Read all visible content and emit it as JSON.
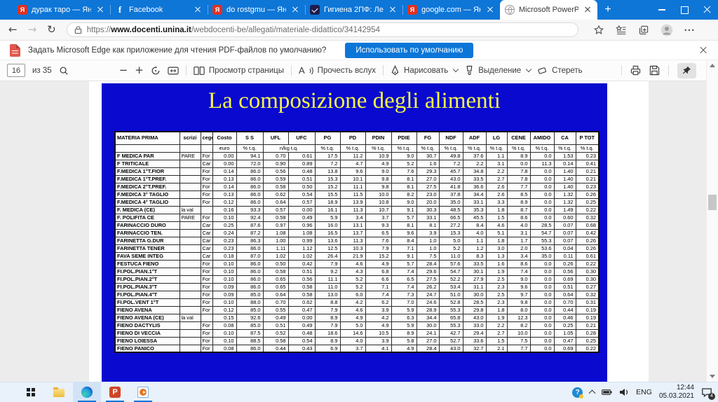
{
  "browser": {
    "tab_bar": {
      "tabs": [
        {
          "title": "дурак таро — Яндекс",
          "icon": "yandex",
          "active": false
        },
        {
          "title": "Facebook",
          "icon": "facebook",
          "active": false
        },
        {
          "title": "do rostgmu — Яндекс",
          "icon": "yandex",
          "active": false
        },
        {
          "title": "Гигиена 2ПФ: Лекция",
          "icon": "webinar",
          "active": false
        },
        {
          "title": "google.com — Яндекс",
          "icon": "yandex",
          "active": false
        },
        {
          "title": "Microsoft PowerPoint -",
          "icon": "globe",
          "active": true
        }
      ],
      "new_tab": "+"
    },
    "nav": {
      "url_scheme": "https://",
      "url_host": "www.docenti.unina.it",
      "url_path": "/webdocenti-be/allegati/materiale-didattico/34142954"
    },
    "notification": {
      "message": "Задать Microsoft Edge как приложение для чтения PDF-файлов по умолчанию?",
      "button": "Использовать по умолчанию"
    },
    "pdf_toolbar": {
      "page_number": "16",
      "page_count_label": "из 35",
      "page_view_label": "Просмотр страницы",
      "read_aloud_label": "Прочесть вслух",
      "draw_label": "Нарисовать",
      "highlight_label": "Выделение",
      "erase_label": "Стереть"
    }
  },
  "slide": {
    "title": "La composizione degli alimenti",
    "table": {
      "columns": [
        "MATERIA PRIMA",
        "scrizi",
        "cegc",
        "Costo",
        "S S",
        "UFL",
        "UFC",
        "PG",
        "PD",
        "PDIN",
        "PDIE",
        "FG",
        "NDF",
        "ADF",
        "LG",
        "CENE",
        "AMIDO",
        "CA",
        "P TOT"
      ],
      "units": [
        {
          "label": "",
          "span": 1
        },
        {
          "label": "",
          "span": 1
        },
        {
          "label": "",
          "span": 1
        },
        {
          "label": "euro",
          "span": 1
        },
        {
          "label": "% t.q.",
          "span": 1
        },
        {
          "label": "n/kg t.q.",
          "span": 2
        },
        {
          "label": "% t.q.",
          "span": 1
        },
        {
          "label": "% t.q.",
          "span": 1
        },
        {
          "label": "% t.q.",
          "span": 1
        },
        {
          "label": "% t.q.",
          "span": 1
        },
        {
          "label": "% t.q.",
          "span": 1
        },
        {
          "label": "% t.q.",
          "span": 1
        },
        {
          "label": "% t.q.",
          "span": 1
        },
        {
          "label": "% t.q.",
          "span": 1
        },
        {
          "label": "% t.q.",
          "span": 1
        },
        {
          "label": "% t.q.",
          "span": 1
        },
        {
          "label": "% t.q.",
          "span": 1
        },
        {
          "label": "% t.q.",
          "span": 1
        }
      ],
      "rows": [
        [
          "F MEDICA PAR",
          "PARE",
          "For",
          "0.00",
          "94.1",
          "0.70",
          "0.61",
          "17.5",
          "11.2",
          "10.9",
          "9.0",
          "30.7",
          "49.8",
          "37.6",
          "1.1",
          "8.9",
          "0.0",
          "1.53",
          "0.23"
        ],
        [
          "F TRITICALE",
          "",
          "Car",
          "0.00",
          "72.0",
          "0.90",
          "0.89",
          "7.2",
          "4.7",
          "4.9",
          "5.2",
          "1.6",
          "7.2",
          "2.2",
          "3.1",
          "0.0",
          "11.3",
          "0.14",
          "0.41"
        ],
        [
          "F.MEDICA 1°T.FIOR",
          "",
          "For",
          "0.14",
          "86.0",
          "0.56",
          "0.48",
          "13.8",
          "9.6",
          "9.0",
          "7.6",
          "29.3",
          "45.7",
          "34.8",
          "2.2",
          "7.8",
          "0.0",
          "1.40",
          "0.21"
        ],
        [
          "F.MEDICA 1°T.PREF.",
          "",
          "For",
          "0.13",
          "86.0",
          "0.59",
          "0.51",
          "15.3",
          "10.1",
          "9.8",
          "8.1",
          "27.0",
          "43.0",
          "33.5",
          "2.7",
          "7.8",
          "0.0",
          "1.40",
          "0.21"
        ],
        [
          "F.MEDICA 2°T.PREF.",
          "",
          "For",
          "0.14",
          "86.0",
          "0.58",
          "0.50",
          "15.2",
          "11.1",
          "9.8",
          "8.1",
          "27.5",
          "41.8",
          "36.6",
          "2.6",
          "7.7",
          "0.0",
          "1.40",
          "0.23"
        ],
        [
          "F.MEDICA 3° TAGLIO",
          "",
          "For",
          "0.13",
          "86.0",
          "0.62",
          "0.54",
          "15.5",
          "11.5",
          "10.0",
          "8.2",
          "23.0",
          "37.8",
          "34.4",
          "2.6",
          "8.5",
          "0.0",
          "1.32",
          "0.26"
        ],
        [
          "F.MEDICA 4° TAGLIO",
          "",
          "For",
          "0.12",
          "86.0",
          "0.64",
          "0.57",
          "18.9",
          "13.9",
          "10.8",
          "9.0",
          "20.0",
          "35.0",
          "33.1",
          "3.3",
          "8.9",
          "0.0",
          "1.32",
          "0.25"
        ],
        [
          "F. MEDICA (CE)",
          "la val",
          "",
          "0.16",
          "93.3",
          "0.57",
          "0.00",
          "16.1",
          "11.3",
          "10.7",
          "9.1",
          "30.3",
          "48.5",
          "35.3",
          "1.8",
          "8.7",
          "0.0",
          "1.49",
          "0.22"
        ],
        [
          "F. POLIFITA CE",
          "PARE",
          "For",
          "0.10",
          "92.4",
          "0.58",
          "0.49",
          "5.9",
          "3.4",
          "3.7",
          "5.7",
          "33.1",
          "66.5",
          "45.5",
          "1.5",
          "8.6",
          "0.0",
          "0.60",
          "0.32"
        ],
        [
          "FARINACCIO DURO",
          "",
          "Car",
          "0.25",
          "87.6",
          "0.97",
          "0.96",
          "16.0",
          "13.1",
          "9.3",
          "8.1",
          "8.1",
          "27.2",
          "8.4",
          "4.6",
          "4.0",
          "28.5",
          "0.07",
          "0.68"
        ],
        [
          "FARINACCIO TEN.",
          "",
          "Car",
          "0.24",
          "87.2",
          "1.08",
          "1.08",
          "16.5",
          "13.7",
          "6.5",
          "9.6",
          "3.9",
          "15.3",
          "4.0",
          "5.1",
          "3.1",
          "54.7",
          "0.07",
          "0.42"
        ],
        [
          "FARINETTA G.DUR",
          "",
          "Car",
          "0.23",
          "86.3",
          "1.00",
          "0.99",
          "13.6",
          "11.3",
          "7.6",
          "8.4",
          "1.0",
          "5.0",
          "1.1",
          "1.8",
          "1.7",
          "55.3",
          "0.07",
          "0.26"
        ],
        [
          "FARINETTA TENER",
          "",
          "Car",
          "0.23",
          "86.0",
          "1.11",
          "1.12",
          "12.5",
          "10.3",
          "7.9",
          "7.1",
          "1.0",
          "5.2",
          "1.2",
          "3.0",
          "2.0",
          "53.6",
          "0.04",
          "0.26"
        ],
        [
          "FAVA SEME INTEG",
          "",
          "Car",
          "0.18",
          "87.0",
          "1.02",
          "1.02",
          "26.4",
          "21.9",
          "15.2",
          "9.1",
          "7.5",
          "11.0",
          "8.3",
          "1.3",
          "3.4",
          "35.0",
          "0.11",
          "0.61"
        ],
        [
          "FESTUCA FIENO",
          "",
          "For",
          "0.10",
          "86.0",
          "0.50",
          "0.42",
          "7.9",
          "4.6",
          "4.9",
          "5.7",
          "28.4",
          "57.6",
          "33.5",
          "1.6",
          "8.6",
          "0.0",
          "0.26",
          "0.22"
        ],
        [
          "FI.POL.PIAN.1°T",
          "",
          "For",
          "0.10",
          "86.0",
          "0.58",
          "0.51",
          "9.2",
          "4.3",
          "6.8",
          "7.4",
          "29.6",
          "54.7",
          "30.1",
          "1.9",
          "7.4",
          "0.0",
          "0.56",
          "0.30"
        ],
        [
          "FI.POL.PIAN.2°T",
          "",
          "For",
          "0.10",
          "86.0",
          "0.65",
          "0.56",
          "11.1",
          "5.2",
          "6.6",
          "6.5",
          "27.5",
          "52.2",
          "27.9",
          "2.5",
          "9.0",
          "0.0",
          "0.69",
          "0.30"
        ],
        [
          "FI.POL.PIAN.3°T",
          "",
          "For",
          "0.09",
          "86.0",
          "0.65",
          "0.58",
          "11.0",
          "5.2",
          "7.1",
          "7.4",
          "26.2",
          "53.4",
          "31.1",
          "2.3",
          "9.6",
          "0.0",
          "0.51",
          "0.27"
        ],
        [
          "FI.POL.PIAN.4°T",
          "",
          "For",
          "0.09",
          "85.0",
          "0.64",
          "0.58",
          "13.0",
          "6.0",
          "7.4",
          "7.3",
          "24.7",
          "51.0",
          "30.0",
          "2.5",
          "9.7",
          "0.0",
          "0.64",
          "0.32"
        ],
        [
          "FI.POL.VENT 1°T",
          "",
          "For",
          "0.10",
          "88.0",
          "0.70",
          "0.62",
          "8.8",
          "4.2",
          "6.2",
          "7.0",
          "24.6",
          "52.8",
          "28.5",
          "2.3",
          "9.8",
          "0.0",
          "0.70",
          "0.31"
        ],
        [
          "FIENO AVENA",
          "",
          "For",
          "0.12",
          "85.0",
          "0.55",
          "0.47",
          "7.9",
          "4.6",
          "3.9",
          "5.9",
          "28.9",
          "55.3",
          "29.8",
          "1.8",
          "8.0",
          "0.0",
          "0.44",
          "0.19"
        ],
        [
          "FIENO AVENA (CE)",
          "la val",
          "",
          "0.15",
          "92.6",
          "0.49",
          "0.00",
          "8.9",
          "4.9",
          "4.2",
          "6.3",
          "34.4",
          "65.8",
          "43.0",
          "1.9",
          "12.3",
          "0.0",
          "0.46",
          "0.19"
        ],
        [
          "FIENO DACTYLIS",
          "",
          "For",
          "0.08",
          "85.0",
          "0.51",
          "0.49",
          "7.9",
          "5.0",
          "4.9",
          "5.9",
          "30.0",
          "55.3",
          "33.0",
          "2.2",
          "8.2",
          "0.0",
          "0.25",
          "0.21"
        ],
        [
          "FIENO DI VECCIA",
          "",
          "For",
          "0.10",
          "87.5",
          "0.52",
          "0.48",
          "18.6",
          "14.6",
          "10.5",
          "8.9",
          "24.1",
          "42.7",
          "29.4",
          "2.7",
          "10.0",
          "0.0",
          "1.05",
          "0.28"
        ],
        [
          "FIENO LOIESSA",
          "",
          "For",
          "0.10",
          "88.5",
          "0.58",
          "0.54",
          "8.9",
          "4.0",
          "3.9",
          "5.8",
          "27.0",
          "52.7",
          "33.6",
          "1.5",
          "7.5",
          "0.0",
          "0.47",
          "0.25"
        ],
        [
          "FIENO PANICO",
          "",
          "For",
          "0.08",
          "86.0",
          "0.44",
          "0.43",
          "6.9",
          "3.7",
          "4.1",
          "4.9",
          "28.4",
          "43.0",
          "32.7",
          "2.1",
          "7.7",
          "0.0",
          "0.69",
          "0.22"
        ]
      ]
    }
  },
  "taskbar": {
    "language": "ENG",
    "time": "12:44",
    "date": "05.03.2021",
    "notification_count": "4"
  }
}
